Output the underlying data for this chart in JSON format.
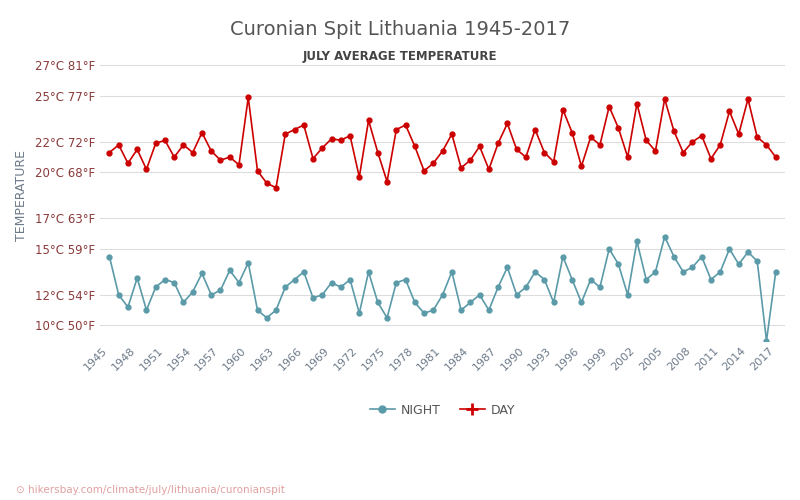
{
  "title": "Curonian Spit Lithuania 1945-2017",
  "subtitle": "JULY AVERAGE TEMPERATURE",
  "ylabel": "TEMPERATURE",
  "watermark": "hikersbay.com/climate/july/lithuania/curonianspit",
  "years": [
    1945,
    1946,
    1947,
    1948,
    1949,
    1950,
    1951,
    1952,
    1953,
    1954,
    1955,
    1956,
    1957,
    1958,
    1959,
    1960,
    1961,
    1962,
    1963,
    1964,
    1965,
    1966,
    1967,
    1968,
    1969,
    1970,
    1971,
    1972,
    1973,
    1974,
    1975,
    1976,
    1977,
    1978,
    1979,
    1980,
    1981,
    1982,
    1983,
    1984,
    1985,
    1986,
    1987,
    1988,
    1989,
    1990,
    1991,
    1992,
    1993,
    1994,
    1995,
    1996,
    1997,
    1998,
    1999,
    2000,
    2001,
    2002,
    2003,
    2004,
    2005,
    2006,
    2007,
    2008,
    2009,
    2010,
    2011,
    2012,
    2013,
    2014,
    2015,
    2016,
    2017
  ],
  "day": [
    21.3,
    21.8,
    20.6,
    21.5,
    20.2,
    21.9,
    22.1,
    21.0,
    21.8,
    21.3,
    22.6,
    21.4,
    20.8,
    21.0,
    20.5,
    24.9,
    20.1,
    19.3,
    19.0,
    22.5,
    22.8,
    23.1,
    20.9,
    21.6,
    22.2,
    22.1,
    22.4,
    19.7,
    23.4,
    21.3,
    19.4,
    22.8,
    23.1,
    21.7,
    20.1,
    20.6,
    21.4,
    22.5,
    20.3,
    20.8,
    21.7,
    20.2,
    21.9,
    23.2,
    21.5,
    21.0,
    22.8,
    21.3,
    20.7,
    24.1,
    22.6,
    20.4,
    22.3,
    21.8,
    24.3,
    22.9,
    21.0,
    24.5,
    22.1,
    21.4,
    24.8,
    22.7,
    21.3,
    22.0,
    22.4,
    20.9,
    21.8,
    24.0,
    22.5,
    24.8,
    22.3,
    21.8,
    21.0
  ],
  "night": [
    14.5,
    12.0,
    11.2,
    13.1,
    11.0,
    12.5,
    13.0,
    12.8,
    11.5,
    12.2,
    13.4,
    12.0,
    12.3,
    13.6,
    12.8,
    14.1,
    11.0,
    10.5,
    11.0,
    12.5,
    13.0,
    13.5,
    11.8,
    12.0,
    12.8,
    12.5,
    13.0,
    10.8,
    13.5,
    11.5,
    10.5,
    12.8,
    13.0,
    11.5,
    10.8,
    11.0,
    12.0,
    13.5,
    11.0,
    11.5,
    12.0,
    11.0,
    12.5,
    13.8,
    12.0,
    12.5,
    13.5,
    13.0,
    11.5,
    14.5,
    13.0,
    11.5,
    13.0,
    12.5,
    15.0,
    14.0,
    12.0,
    15.5,
    13.0,
    13.5,
    15.8,
    14.5,
    13.5,
    13.8,
    14.5,
    13.0,
    13.5,
    15.0,
    14.0,
    14.8,
    14.2,
    9.0,
    13.5
  ],
  "day_color": "#cc0000",
  "night_color": "#5b9aa8",
  "title_color": "#555555",
  "subtitle_color": "#444444",
  "label_color": "#8b3a3a",
  "yticks_c": [
    10,
    12,
    15,
    17,
    20,
    22,
    25,
    27
  ],
  "yticks_f": [
    50,
    54,
    59,
    63,
    68,
    72,
    77,
    81
  ],
  "xtick_years": [
    1945,
    1948,
    1951,
    1954,
    1957,
    1960,
    1963,
    1966,
    1969,
    1972,
    1975,
    1978,
    1981,
    1984,
    1987,
    1990,
    1993,
    1996,
    1999,
    2002,
    2005,
    2008,
    2011,
    2014,
    2017
  ],
  "ylim": [
    9.0,
    28.0
  ],
  "grid_color": "#dddddd",
  "background_color": "#ffffff"
}
